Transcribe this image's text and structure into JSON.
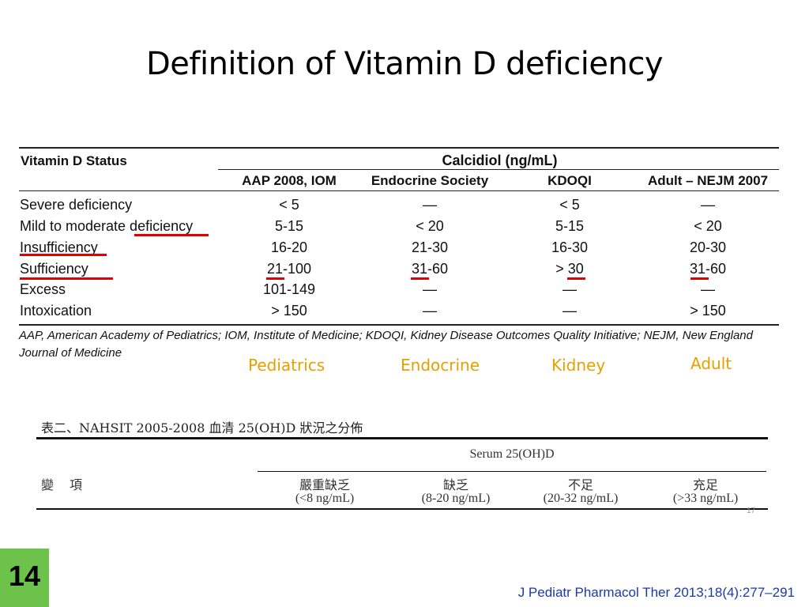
{
  "title": "Definition of Vitamin D deficiency",
  "table1": {
    "status_header": "Vitamin D Status",
    "group_header": "Calcidiol (ng/mL)",
    "columns": [
      "AAP 2008, IOM",
      "Endocrine Society",
      "KDOQI",
      "Adult – NEJM 2007"
    ],
    "rows": [
      {
        "label": "Severe deficiency",
        "values": [
          "< 5",
          "—",
          "< 5",
          "—"
        ]
      },
      {
        "label": "Mild to moderate deficiency",
        "values": [
          "5-15",
          "< 20",
          "5-15",
          "< 20"
        ]
      },
      {
        "label": "Insufficiency",
        "values": [
          "16-20",
          "21-30",
          "16-30",
          "20-30"
        ]
      },
      {
        "label": "Sufficiency",
        "values": [
          "21-100",
          "31-60",
          "> 30",
          "31-60"
        ]
      },
      {
        "label": "Excess",
        "values": [
          "101-149",
          "—",
          "—",
          "—"
        ]
      },
      {
        "label": "Intoxication",
        "values": [
          "> 150",
          "—",
          "—",
          "> 150"
        ]
      }
    ],
    "footnote": "AAP, American Academy of Pediatrics; IOM, Institute of Medicine; KDOQI, Kidney Disease Outcomes Quality Initiative; NEJM, New England Journal of Medicine",
    "highlight_color": "#e00000"
  },
  "column_tags": [
    "Pediatrics",
    "Endocrine",
    "Kidney",
    "Adult"
  ],
  "table2": {
    "caption": "表二、NAHSIT 2005-2008 血清 25(OH)D 狀況之分佈",
    "row_header": "變　項",
    "group_header": "Serum 25(OH)D",
    "columns": [
      {
        "name": "嚴重缺乏",
        "range": "(<8 ng/mL)"
      },
      {
        "name": "缺乏",
        "range": "(8-20 ng/mL)"
      },
      {
        "name": "不足",
        "range": "(20-32 ng/mL)"
      },
      {
        "name": "充足",
        "range": "(>33 ng/mL)"
      }
    ],
    "page_mark": "17"
  },
  "slide_number": "14",
  "citation": "J Pediatr Pharmacol Ther 2013;18(4):277–291",
  "colors": {
    "tag": "#e6a000",
    "slide_number_bg": "#6cc24a",
    "citation": "#1a3aa8"
  }
}
